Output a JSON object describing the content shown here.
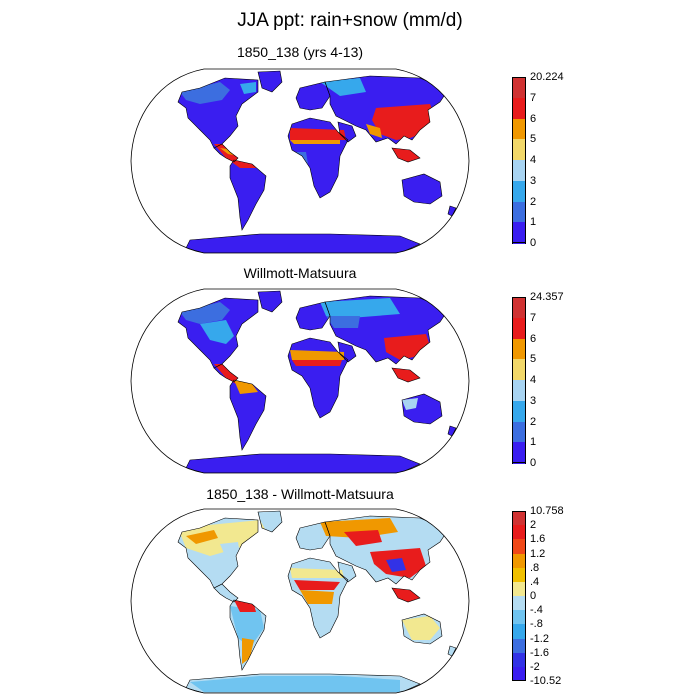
{
  "title": "JJA ppt: rain+snow (mm/d)",
  "panels": [
    {
      "title": "1850_138 (yrs 4-13)",
      "colorbar": {
        "labels": [
          "20.224",
          "7",
          "6",
          "5",
          "4",
          "3",
          "2",
          "1",
          "0"
        ],
        "colors": [
          "#d03232",
          "#e81c1c",
          "#f09800",
          "#f2d86a",
          "#a8d4f2",
          "#36a8ec",
          "#3c6ee0",
          "#3a1ef0"
        ]
      }
    },
    {
      "title": "Willmott-Matsuura",
      "colorbar": {
        "labels": [
          "24.357",
          "7",
          "6",
          "5",
          "4",
          "3",
          "2",
          "1",
          "0"
        ],
        "colors": [
          "#d03232",
          "#e81c1c",
          "#f09800",
          "#f2d86a",
          "#a8d4f2",
          "#36a8ec",
          "#3c6ee0",
          "#3a1ef0"
        ]
      }
    },
    {
      "title": "1850_138 - Willmott-Matsuura",
      "colorbar": {
        "labels": [
          "10.758",
          "2",
          "1.6",
          "1.2",
          ".8",
          ".4",
          "0",
          "-.4",
          "-.8",
          "-1.2",
          "-1.6",
          "-2",
          "-10.52"
        ],
        "colors": [
          "#d03232",
          "#e81c1c",
          "#f04818",
          "#f09800",
          "#f0c000",
          "#f2e890",
          "#b4dcf2",
          "#70c4f0",
          "#36a8ec",
          "#3c6ee0",
          "#3232e6",
          "#3a1ef0"
        ]
      }
    }
  ]
}
